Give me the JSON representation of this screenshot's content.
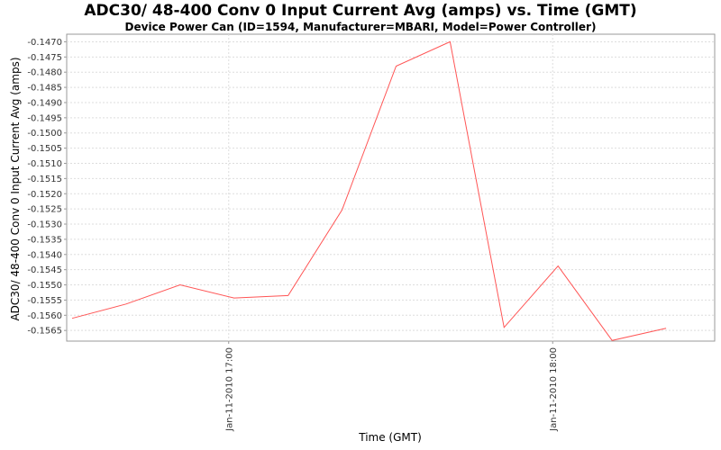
{
  "chart_data": {
    "type": "line",
    "title": "ADC30/ 48-400 Conv 0 Input Current  Avg (amps) vs. Time (GMT)",
    "subtitle": "Device Power Can (ID=1594, Manufacturer=MBARI, Model=Power Controller)",
    "xlabel": "Time (GMT)",
    "ylabel": "ADC30/ 48-400 Conv 0 Input Current  Avg (amps)",
    "ylim": [
      -0.15685,
      -0.14675
    ],
    "yticks": [
      "-0.1470",
      "-0.1475",
      "-0.1480",
      "-0.1485",
      "-0.1490",
      "-0.1495",
      "-0.1500",
      "-0.1505",
      "-0.1510",
      "-0.1515",
      "-0.1520",
      "-0.1525",
      "-0.1530",
      "-0.1535",
      "-0.1540",
      "-0.1545",
      "-0.1550",
      "-0.1555",
      "-0.1560",
      "-0.1565"
    ],
    "xlim": [
      "2010-01-11T16:30",
      "2010-01-11T18:30"
    ],
    "xticks": [
      {
        "time": "2010-01-11T17:00",
        "label": "Jan-11-2010 17:00"
      },
      {
        "time": "2010-01-11T18:00",
        "label": "Jan-11-2010 18:00"
      }
    ],
    "grid": true,
    "line_color": "#ff5555",
    "series": [
      {
        "x": [
          "2010-01-11T16:31",
          "2010-01-11T16:41",
          "2010-01-11T16:51",
          "2010-01-11T17:01",
          "2010-01-11T17:11",
          "2010-01-11T17:21",
          "2010-01-11T17:31",
          "2010-01-11T17:41",
          "2010-01-11T17:51",
          "2010-01-11T18:01",
          "2010-01-11T18:11",
          "2010-01-11T18:21"
        ],
        "values": [
          -0.1561,
          -0.15563,
          -0.155,
          -0.15543,
          -0.15535,
          -0.15253,
          -0.1478,
          -0.147,
          -0.1564,
          -0.15438,
          -0.15683,
          -0.15643
        ]
      }
    ]
  }
}
